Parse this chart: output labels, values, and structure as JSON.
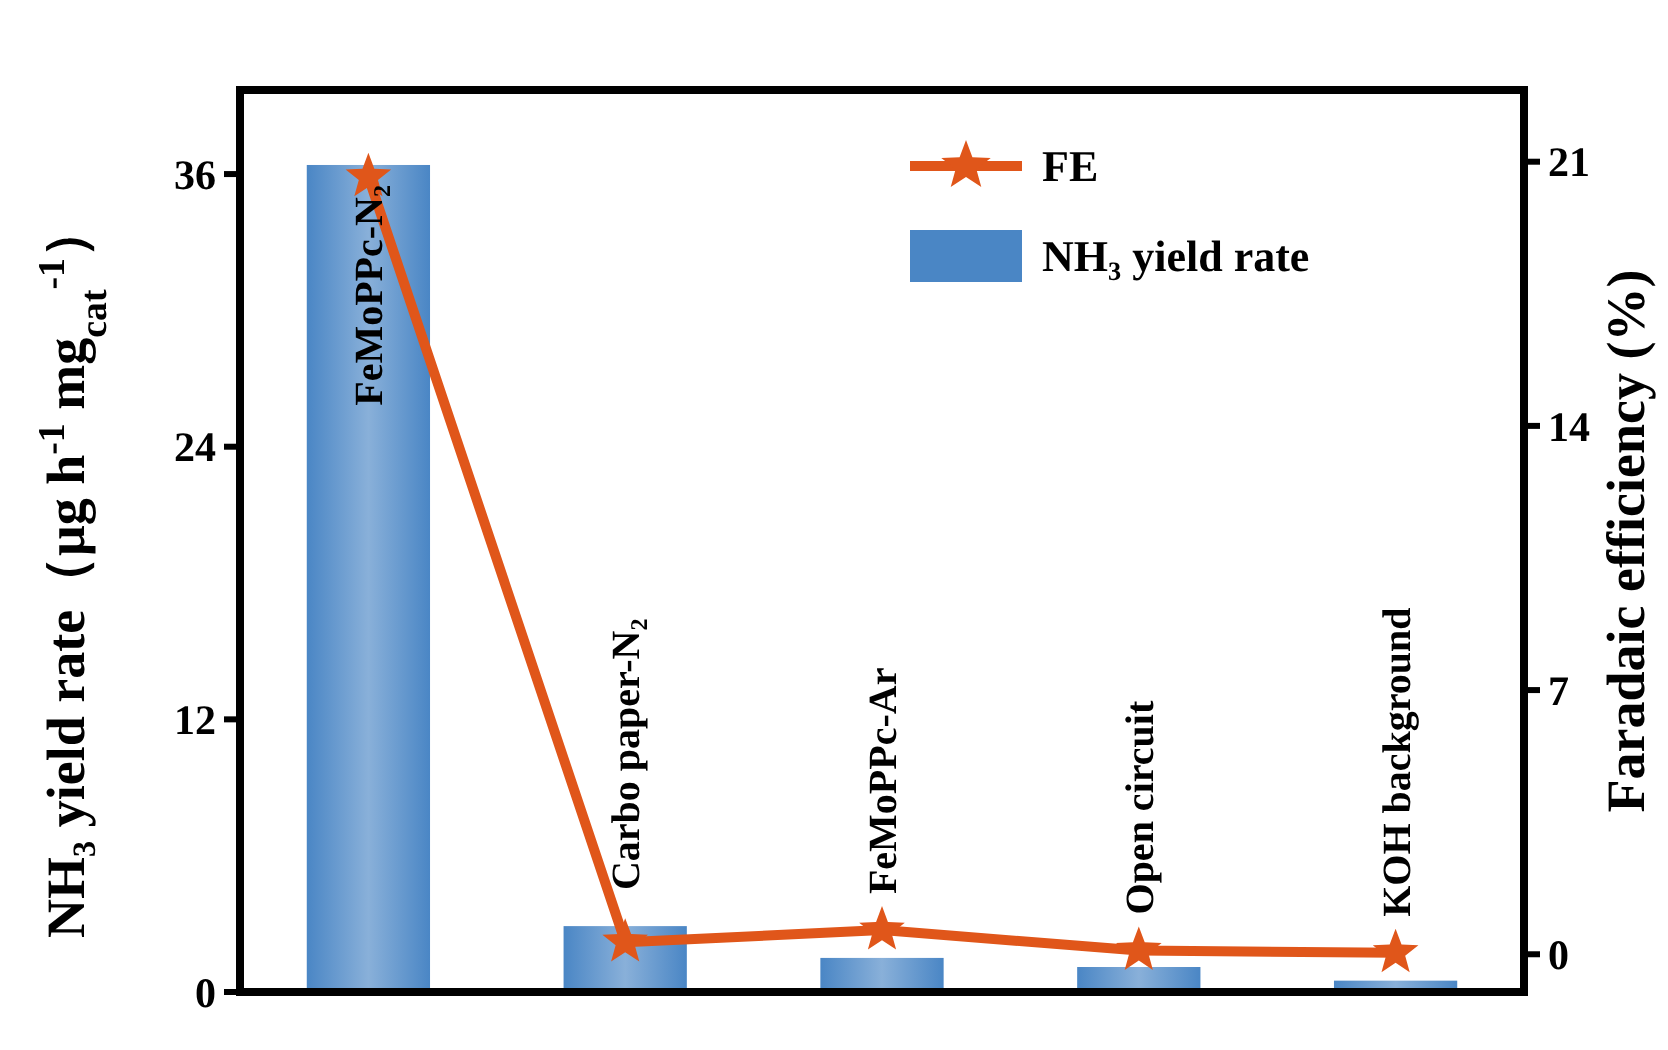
{
  "chart_data": {
    "type": "bar",
    "ylabel": "NH₃ yield rate（μg h$^{-1}$ mg$_{cat}$$^{-1}$）",
    "y2label": "Faradaic efficiency (%)",
    "categories": [
      "FeMoPPc-N₂",
      "Carbo paper-N₂",
      "FeMoPPc-Ar",
      "Open circuit",
      "KOH background"
    ],
    "series": [
      {
        "name": "FE",
        "type": "line",
        "axis": "y2",
        "color": "#e0561a",
        "marker": "star",
        "line_style": "solid",
        "values": [
          20.6,
          0.32,
          0.64,
          0.1,
          0.04
        ]
      },
      {
        "name": "NH₃ yield rate",
        "color": "#4a86c5",
        "values": [
          36.4,
          2.9,
          1.5,
          1.1,
          0.5
        ]
      }
    ],
    "ylim": [
      0,
      39.7
    ],
    "yticks": [
      0,
      12,
      24,
      36
    ],
    "y2lim": [
      -1,
      22.9
    ],
    "y2ticks": [
      0,
      7,
      14,
      21
    ],
    "grid": false,
    "legend": "top right"
  }
}
